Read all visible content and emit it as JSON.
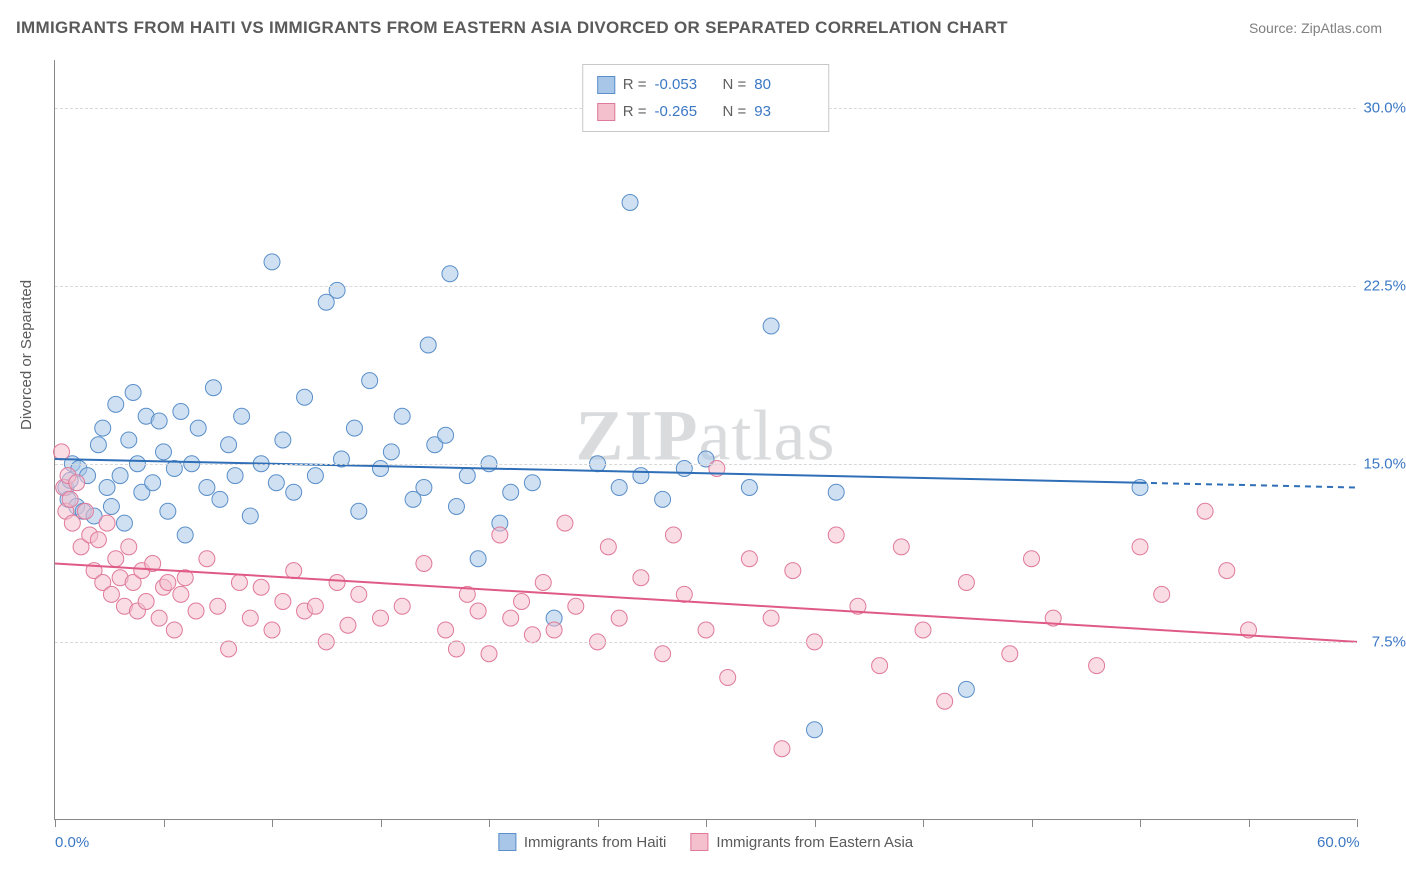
{
  "title": "IMMIGRANTS FROM HAITI VS IMMIGRANTS FROM EASTERN ASIA DIVORCED OR SEPARATED CORRELATION CHART",
  "source": "Source: ZipAtlas.com",
  "watermark_bold": "ZIP",
  "watermark_light": "atlas",
  "y_axis_title": "Divorced or Separated",
  "chart": {
    "type": "scatter",
    "background_color": "#ffffff",
    "grid_color": "#d8d8d8",
    "axis_color": "#888888",
    "xlim": [
      0,
      60
    ],
    "ylim": [
      0,
      32
    ],
    "x_ticks_minor": [
      0,
      5,
      10,
      15,
      20,
      25,
      30,
      35,
      40,
      45,
      50,
      55,
      60
    ],
    "x_tick_labels": [
      {
        "x": 0,
        "label": "0.0%"
      },
      {
        "x": 60,
        "label": "60.0%"
      }
    ],
    "y_gridlines": [
      7.5,
      15.0,
      22.5,
      30.0
    ],
    "y_tick_labels": [
      {
        "y": 7.5,
        "label": "7.5%"
      },
      {
        "y": 15.0,
        "label": "15.0%"
      },
      {
        "y": 22.5,
        "label": "22.5%"
      },
      {
        "y": 30.0,
        "label": "30.0%"
      }
    ],
    "marker_radius": 8,
    "marker_opacity": 0.55,
    "series": [
      {
        "name": "Immigrants from Haiti",
        "color_fill": "#a8c7e8",
        "color_stroke": "#5a8fc9",
        "R": "-0.053",
        "N": "80",
        "trend": {
          "x1": 0,
          "y1": 15.2,
          "x2": 50,
          "y2": 14.2,
          "dash_to_x": 60,
          "dash_to_y": 14.0,
          "color": "#2f6fb7",
          "width": 2
        },
        "points": [
          [
            0.5,
            14.0
          ],
          [
            0.6,
            13.5
          ],
          [
            0.7,
            14.3
          ],
          [
            0.8,
            15.0
          ],
          [
            1.0,
            13.2
          ],
          [
            1.1,
            14.8
          ],
          [
            1.3,
            13.0
          ],
          [
            1.5,
            14.5
          ],
          [
            1.8,
            12.8
          ],
          [
            2.0,
            15.8
          ],
          [
            2.2,
            16.5
          ],
          [
            2.4,
            14.0
          ],
          [
            2.6,
            13.2
          ],
          [
            2.8,
            17.5
          ],
          [
            3.0,
            14.5
          ],
          [
            3.2,
            12.5
          ],
          [
            3.4,
            16.0
          ],
          [
            3.6,
            18.0
          ],
          [
            3.8,
            15.0
          ],
          [
            4.0,
            13.8
          ],
          [
            4.2,
            17.0
          ],
          [
            4.5,
            14.2
          ],
          [
            4.8,
            16.8
          ],
          [
            5.0,
            15.5
          ],
          [
            5.2,
            13.0
          ],
          [
            5.5,
            14.8
          ],
          [
            5.8,
            17.2
          ],
          [
            6.0,
            12.0
          ],
          [
            6.3,
            15.0
          ],
          [
            6.6,
            16.5
          ],
          [
            7.0,
            14.0
          ],
          [
            7.3,
            18.2
          ],
          [
            7.6,
            13.5
          ],
          [
            8.0,
            15.8
          ],
          [
            8.3,
            14.5
          ],
          [
            8.6,
            17.0
          ],
          [
            9.0,
            12.8
          ],
          [
            9.5,
            15.0
          ],
          [
            10.0,
            23.5
          ],
          [
            10.2,
            14.2
          ],
          [
            10.5,
            16.0
          ],
          [
            11.0,
            13.8
          ],
          [
            11.5,
            17.8
          ],
          [
            12.0,
            14.5
          ],
          [
            12.5,
            21.8
          ],
          [
            13.0,
            22.3
          ],
          [
            13.2,
            15.2
          ],
          [
            13.8,
            16.5
          ],
          [
            14.0,
            13.0
          ],
          [
            14.5,
            18.5
          ],
          [
            15.0,
            14.8
          ],
          [
            15.5,
            15.5
          ],
          [
            16.0,
            17.0
          ],
          [
            16.5,
            13.5
          ],
          [
            17.0,
            14.0
          ],
          [
            17.2,
            20.0
          ],
          [
            17.5,
            15.8
          ],
          [
            18.0,
            16.2
          ],
          [
            18.2,
            23.0
          ],
          [
            18.5,
            13.2
          ],
          [
            19.0,
            14.5
          ],
          [
            19.5,
            11.0
          ],
          [
            20.0,
            15.0
          ],
          [
            20.5,
            12.5
          ],
          [
            21.0,
            13.8
          ],
          [
            22.0,
            14.2
          ],
          [
            23.0,
            8.5
          ],
          [
            25.0,
            15.0
          ],
          [
            26.0,
            14.0
          ],
          [
            26.5,
            26.0
          ],
          [
            27.0,
            14.5
          ],
          [
            28.0,
            13.5
          ],
          [
            29.0,
            14.8
          ],
          [
            30.0,
            15.2
          ],
          [
            32.0,
            14.0
          ],
          [
            33.0,
            20.8
          ],
          [
            35.0,
            3.8
          ],
          [
            36.0,
            13.8
          ],
          [
            42.0,
            5.5
          ],
          [
            50.0,
            14.0
          ]
        ]
      },
      {
        "name": "Immigrants from Eastern Asia",
        "color_fill": "#f4c0cd",
        "color_stroke": "#e07a9b",
        "R": "-0.265",
        "N": "93",
        "trend": {
          "x1": 0,
          "y1": 10.8,
          "x2": 60,
          "y2": 7.5,
          "color": "#e05a87",
          "width": 2
        },
        "points": [
          [
            0.3,
            15.5
          ],
          [
            0.4,
            14.0
          ],
          [
            0.5,
            13.0
          ],
          [
            0.6,
            14.5
          ],
          [
            0.7,
            13.5
          ],
          [
            0.8,
            12.5
          ],
          [
            1.0,
            14.2
          ],
          [
            1.2,
            11.5
          ],
          [
            1.4,
            13.0
          ],
          [
            1.6,
            12.0
          ],
          [
            1.8,
            10.5
          ],
          [
            2.0,
            11.8
          ],
          [
            2.2,
            10.0
          ],
          [
            2.4,
            12.5
          ],
          [
            2.6,
            9.5
          ],
          [
            2.8,
            11.0
          ],
          [
            3.0,
            10.2
          ],
          [
            3.2,
            9.0
          ],
          [
            3.4,
            11.5
          ],
          [
            3.6,
            10.0
          ],
          [
            3.8,
            8.8
          ],
          [
            4.0,
            10.5
          ],
          [
            4.2,
            9.2
          ],
          [
            4.5,
            10.8
          ],
          [
            4.8,
            8.5
          ],
          [
            5.0,
            9.8
          ],
          [
            5.2,
            10.0
          ],
          [
            5.5,
            8.0
          ],
          [
            5.8,
            9.5
          ],
          [
            6.0,
            10.2
          ],
          [
            6.5,
            8.8
          ],
          [
            7.0,
            11.0
          ],
          [
            7.5,
            9.0
          ],
          [
            8.0,
            7.2
          ],
          [
            8.5,
            10.0
          ],
          [
            9.0,
            8.5
          ],
          [
            9.5,
            9.8
          ],
          [
            10.0,
            8.0
          ],
          [
            10.5,
            9.2
          ],
          [
            11.0,
            10.5
          ],
          [
            11.5,
            8.8
          ],
          [
            12.0,
            9.0
          ],
          [
            12.5,
            7.5
          ],
          [
            13.0,
            10.0
          ],
          [
            13.5,
            8.2
          ],
          [
            14.0,
            9.5
          ],
          [
            15.0,
            8.5
          ],
          [
            16.0,
            9.0
          ],
          [
            17.0,
            10.8
          ],
          [
            18.0,
            8.0
          ],
          [
            18.5,
            7.2
          ],
          [
            19.0,
            9.5
          ],
          [
            19.5,
            8.8
          ],
          [
            20.0,
            7.0
          ],
          [
            20.5,
            12.0
          ],
          [
            21.0,
            8.5
          ],
          [
            21.5,
            9.2
          ],
          [
            22.0,
            7.8
          ],
          [
            22.5,
            10.0
          ],
          [
            23.0,
            8.0
          ],
          [
            23.5,
            12.5
          ],
          [
            24.0,
            9.0
          ],
          [
            25.0,
            7.5
          ],
          [
            25.5,
            11.5
          ],
          [
            26.0,
            8.5
          ],
          [
            27.0,
            10.2
          ],
          [
            28.0,
            7.0
          ],
          [
            28.5,
            12.0
          ],
          [
            29.0,
            9.5
          ],
          [
            30.0,
            8.0
          ],
          [
            30.5,
            14.8
          ],
          [
            31.0,
            6.0
          ],
          [
            32.0,
            11.0
          ],
          [
            33.0,
            8.5
          ],
          [
            33.5,
            3.0
          ],
          [
            34.0,
            10.5
          ],
          [
            35.0,
            7.5
          ],
          [
            36.0,
            12.0
          ],
          [
            37.0,
            9.0
          ],
          [
            38.0,
            6.5
          ],
          [
            39.0,
            11.5
          ],
          [
            40.0,
            8.0
          ],
          [
            41.0,
            5.0
          ],
          [
            42.0,
            10.0
          ],
          [
            44.0,
            7.0
          ],
          [
            45.0,
            11.0
          ],
          [
            46.0,
            8.5
          ],
          [
            48.0,
            6.5
          ],
          [
            50.0,
            11.5
          ],
          [
            51.0,
            9.5
          ],
          [
            53.0,
            13.0
          ],
          [
            54.0,
            10.5
          ],
          [
            55.0,
            8.0
          ]
        ]
      }
    ],
    "legend_top_labels": {
      "R": "R =",
      "N": "N ="
    },
    "legend_bottom": [
      {
        "label": "Immigrants from Haiti",
        "fill": "#a8c7e8",
        "stroke": "#5a8fc9"
      },
      {
        "label": "Immigrants from Eastern Asia",
        "fill": "#f4c0cd",
        "stroke": "#e07a9b"
      }
    ]
  }
}
